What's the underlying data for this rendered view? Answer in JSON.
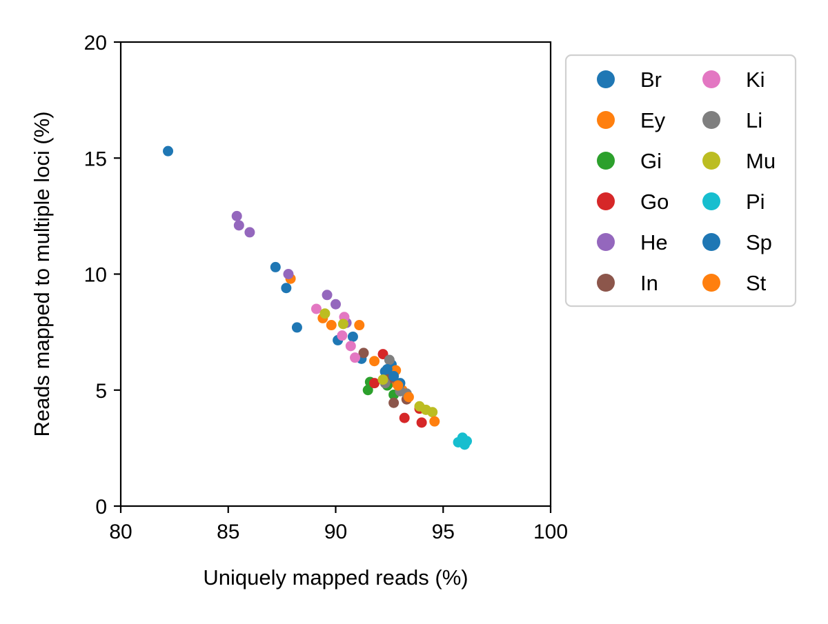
{
  "chart_data": {
    "type": "scatter",
    "title": "",
    "xlabel": "Uniquely mapped reads (%)",
    "ylabel": "Reads mapped to multiple loci (%)",
    "xlim": [
      80,
      100
    ],
    "ylim": [
      0,
      20
    ],
    "xticks": [
      80,
      85,
      90,
      95,
      100
    ],
    "yticks": [
      0,
      5,
      10,
      15,
      20
    ],
    "grid": false,
    "legend": {
      "placement": "outside right",
      "columns": 2
    },
    "series": [
      {
        "name": "Br",
        "color": "#1f77b4",
        "points": [
          [
            82.2,
            15.3
          ],
          [
            87.2,
            10.3
          ],
          [
            87.7,
            9.4
          ],
          [
            88.2,
            7.7
          ],
          [
            90.1,
            7.15
          ],
          [
            90.8,
            7.3
          ],
          [
            91.2,
            6.35
          ],
          [
            92.3,
            5.8
          ],
          [
            92.6,
            6.1
          ]
        ]
      },
      {
        "name": "Ey",
        "color": "#ff7f0e",
        "points": [
          [
            87.9,
            9.8
          ],
          [
            89.4,
            8.1
          ],
          [
            89.8,
            7.8
          ],
          [
            91.1,
            7.8
          ],
          [
            91.8,
            6.25
          ],
          [
            92.5,
            5.3
          ],
          [
            92.8,
            5.85
          ],
          [
            93.1,
            5.0
          ]
        ]
      },
      {
        "name": "Gi",
        "color": "#2ca02c",
        "points": [
          [
            91.5,
            5.0
          ],
          [
            91.6,
            5.35
          ],
          [
            92.4,
            5.2
          ],
          [
            92.7,
            4.8
          ]
        ]
      },
      {
        "name": "Go",
        "color": "#d62728",
        "points": [
          [
            91.8,
            5.3
          ],
          [
            92.2,
            6.55
          ],
          [
            93.2,
            3.8
          ],
          [
            93.9,
            4.2
          ],
          [
            94.0,
            3.6
          ]
        ]
      },
      {
        "name": "He",
        "color": "#9467bd",
        "points": [
          [
            85.4,
            12.5
          ],
          [
            85.5,
            12.1
          ],
          [
            86.0,
            11.8
          ],
          [
            87.8,
            10.0
          ],
          [
            89.6,
            9.1
          ],
          [
            90.0,
            8.7
          ],
          [
            90.5,
            7.9
          ]
        ]
      },
      {
        "name": "In",
        "color": "#8c564b",
        "points": [
          [
            91.3,
            6.6
          ],
          [
            92.5,
            5.5
          ],
          [
            92.7,
            4.45
          ],
          [
            92.9,
            5.25
          ],
          [
            93.3,
            4.6
          ]
        ]
      },
      {
        "name": "Ki",
        "color": "#e377c2",
        "points": [
          [
            89.1,
            8.5
          ],
          [
            90.3,
            7.35
          ],
          [
            90.4,
            8.15
          ],
          [
            90.7,
            6.9
          ],
          [
            90.9,
            6.4
          ]
        ]
      },
      {
        "name": "Li",
        "color": "#7f7f7f",
        "points": [
          [
            92.3,
            5.3
          ],
          [
            92.5,
            6.3
          ],
          [
            93.0,
            4.95
          ],
          [
            93.3,
            4.85
          ]
        ]
      },
      {
        "name": "Mu",
        "color": "#bcbd22",
        "points": [
          [
            89.5,
            8.3
          ],
          [
            90.35,
            7.85
          ],
          [
            92.2,
            5.45
          ],
          [
            93.9,
            4.3
          ],
          [
            94.2,
            4.15
          ],
          [
            94.5,
            4.05
          ]
        ]
      },
      {
        "name": "Pi",
        "color": "#17becf",
        "points": [
          [
            95.7,
            2.75
          ],
          [
            95.9,
            2.95
          ],
          [
            96.0,
            2.65
          ],
          [
            96.1,
            2.8
          ]
        ]
      },
      {
        "name": "Sp",
        "color": "#1f77b4",
        "points": [
          [
            92.4,
            5.9
          ],
          [
            92.7,
            5.6
          ],
          [
            93.0,
            5.3
          ]
        ]
      },
      {
        "name": "St",
        "color": "#ff7f0e",
        "points": [
          [
            92.9,
            5.2
          ],
          [
            93.4,
            4.7
          ],
          [
            94.6,
            3.65
          ]
        ]
      }
    ]
  }
}
